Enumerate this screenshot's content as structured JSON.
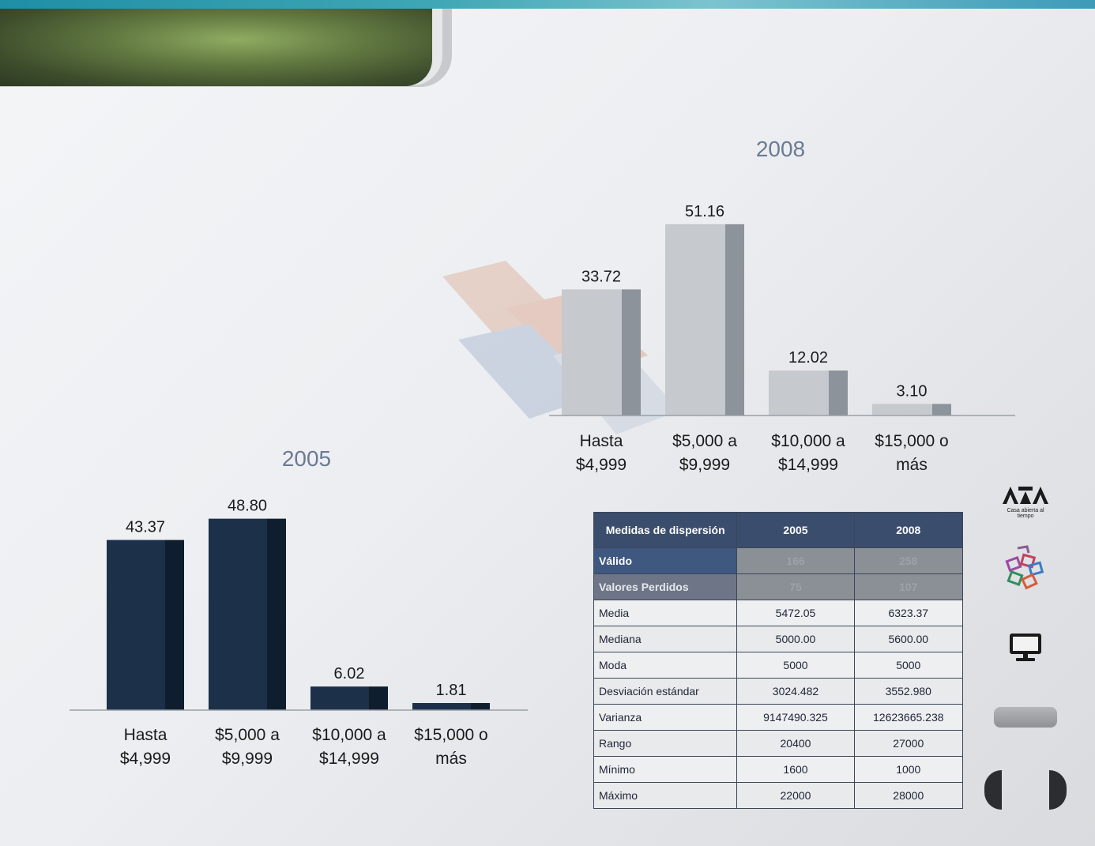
{
  "colors": {
    "bar_2008": "#c6c9cd",
    "bar_2008_side": "#8d939b",
    "bar_2005": "#1d3049",
    "bar_2005_side": "#0f1e2e",
    "title": "#6b7a93",
    "table_header": "#3a4d6d"
  },
  "icons": {
    "logo": "uam-logo",
    "figures": "colored-blocks-icon",
    "monitor": "monitor-icon",
    "prev": "nav-prev-icon",
    "next": "nav-next-icon"
  },
  "logo": {
    "subtitle": "Casa abierta al tiempo"
  },
  "chart_data": [
    {
      "type": "bar",
      "title": "2008",
      "categories": [
        [
          "Hasta",
          "$4,999"
        ],
        [
          "$5,000 a",
          "$9,999"
        ],
        [
          "$10,000 a",
          "$14,999"
        ],
        [
          "$15,000 o",
          "más"
        ]
      ],
      "values": [
        33.72,
        51.16,
        12.02,
        3.1
      ],
      "value_labels": [
        "33.72",
        "51.16",
        "12.02",
        "3.10"
      ],
      "ylim": [
        0,
        60
      ],
      "grid": false,
      "legend": "none"
    },
    {
      "type": "bar",
      "title": "2005",
      "categories": [
        [
          "Hasta",
          "$4,999"
        ],
        [
          "$5,000 a",
          "$9,999"
        ],
        [
          "$10,000 a",
          "$14,999"
        ],
        [
          "$15,000 o",
          "más"
        ]
      ],
      "values": [
        43.37,
        48.8,
        6.02,
        1.81
      ],
      "value_labels": [
        "43.37",
        "48.80",
        "6.02",
        "1.81"
      ],
      "ylim": [
        0,
        60
      ],
      "grid": false,
      "legend": "none"
    }
  ],
  "table": {
    "headers": [
      "Medidas de dispersión",
      "2005",
      "2008"
    ],
    "rows": [
      [
        "Válido",
        "166",
        "258"
      ],
      [
        "Valores Perdidos",
        "75",
        "107"
      ],
      [
        "Media",
        "5472.05",
        "6323.37"
      ],
      [
        "Mediana",
        "5000.00",
        "5600.00"
      ],
      [
        "Moda",
        "5000",
        "5000"
      ],
      [
        "Desviación estándar",
        "3024.482",
        "3552.980"
      ],
      [
        "Varianza",
        "9147490.325",
        "12623665.238"
      ],
      [
        "Rango",
        "20400",
        "27000"
      ],
      [
        "Mínimo",
        "1600",
        "1000"
      ],
      [
        "Máximo",
        "22000",
        "28000"
      ]
    ]
  }
}
